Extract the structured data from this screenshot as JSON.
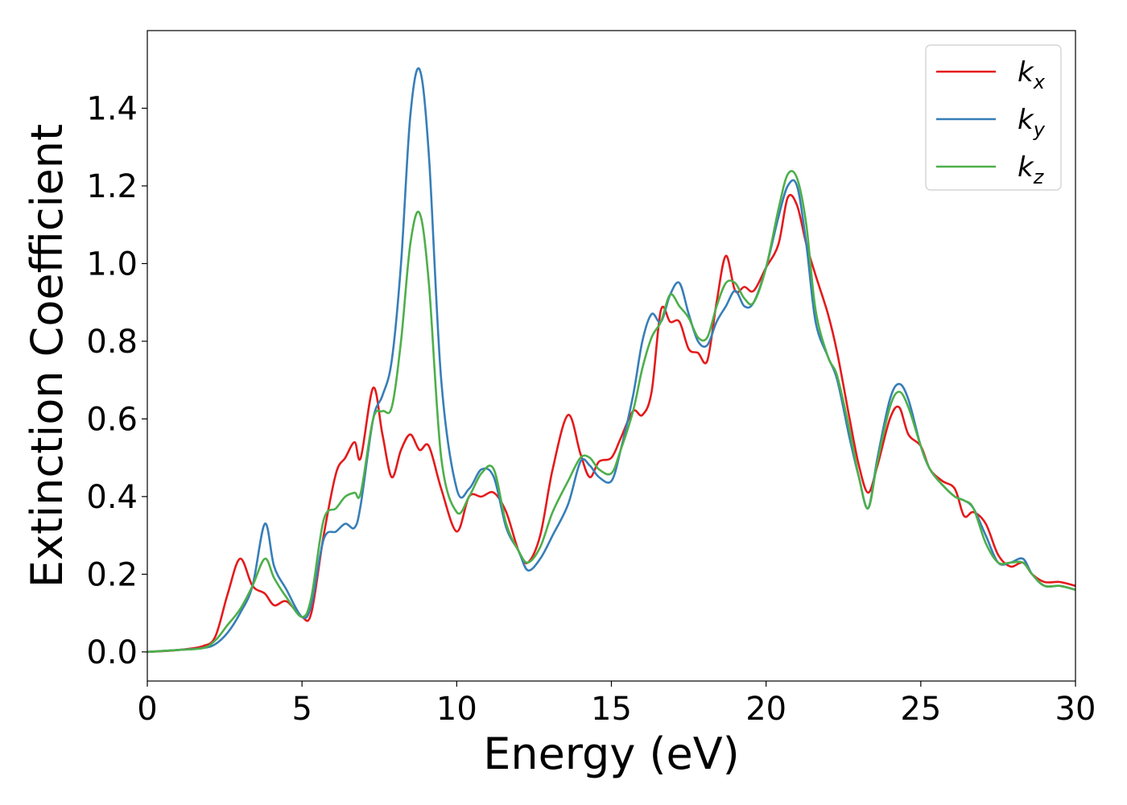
{
  "chart_data": {
    "type": "line",
    "xlabel": "Energy (eV)",
    "ylabel": "Extinction Coefficient",
    "xlim": [
      0,
      30
    ],
    "ylim": [
      -0.075,
      1.6
    ],
    "xticks": [
      0,
      5,
      10,
      15,
      20,
      25,
      30
    ],
    "xtick_labels": [
      "0",
      "5",
      "10",
      "15",
      "20",
      "25",
      "30"
    ],
    "yticks": [
      0.0,
      0.2,
      0.4,
      0.6,
      0.8,
      1.0,
      1.2,
      1.4
    ],
    "ytick_labels": [
      "0.0",
      "0.2",
      "0.4",
      "0.6",
      "0.8",
      "1.0",
      "1.2",
      "1.4"
    ],
    "grid": false,
    "legend_position": "top-right",
    "series": [
      {
        "name": "k",
        "subscript": "x",
        "color": "#e41a1c",
        "x": [
          0,
          1,
          1.8,
          2.2,
          2.6,
          3.0,
          3.4,
          3.8,
          4.1,
          4.5,
          5.0,
          5.3,
          5.7,
          6.1,
          6.4,
          6.7,
          6.9,
          7.3,
          7.6,
          7.9,
          8.2,
          8.5,
          8.8,
          9.1,
          9.5,
          10.0,
          10.4,
          10.8,
          11.2,
          11.6,
          12.0,
          12.3,
          12.7,
          13.1,
          13.6,
          14.0,
          14.3,
          14.6,
          15.0,
          15.3,
          15.7,
          16.0,
          16.3,
          16.6,
          16.9,
          17.2,
          17.5,
          17.8,
          18.1,
          18.4,
          18.7,
          19.0,
          19.3,
          19.6,
          20.0,
          20.4,
          20.7,
          21.0,
          21.3,
          21.6,
          22.0,
          22.3,
          22.7,
          23.0,
          23.3,
          23.6,
          24.0,
          24.3,
          24.6,
          25.0,
          25.3,
          25.7,
          26.1,
          26.4,
          26.7,
          27.1,
          27.5,
          27.9,
          28.3,
          28.6,
          29.0,
          29.5,
          30
        ],
        "y": [
          0.0,
          0.005,
          0.015,
          0.04,
          0.15,
          0.24,
          0.17,
          0.15,
          0.12,
          0.13,
          0.09,
          0.1,
          0.3,
          0.46,
          0.5,
          0.54,
          0.5,
          0.68,
          0.56,
          0.45,
          0.52,
          0.56,
          0.52,
          0.53,
          0.42,
          0.31,
          0.4,
          0.4,
          0.41,
          0.36,
          0.26,
          0.23,
          0.3,
          0.47,
          0.61,
          0.51,
          0.45,
          0.49,
          0.5,
          0.55,
          0.62,
          0.61,
          0.67,
          0.88,
          0.85,
          0.85,
          0.78,
          0.77,
          0.75,
          0.9,
          1.02,
          0.93,
          0.94,
          0.93,
          0.99,
          1.05,
          1.17,
          1.15,
          1.05,
          0.97,
          0.87,
          0.77,
          0.6,
          0.48,
          0.41,
          0.48,
          0.6,
          0.63,
          0.56,
          0.53,
          0.47,
          0.44,
          0.42,
          0.35,
          0.36,
          0.33,
          0.25,
          0.22,
          0.23,
          0.2,
          0.18,
          0.18,
          0.17
        ]
      },
      {
        "name": "k",
        "subscript": "y",
        "color": "#377eb8",
        "x": [
          0,
          1,
          1.8,
          2.2,
          2.6,
          3.0,
          3.4,
          3.8,
          4.1,
          4.5,
          5.0,
          5.3,
          5.7,
          6.1,
          6.4,
          6.7,
          6.9,
          7.3,
          7.6,
          7.9,
          8.2,
          8.5,
          8.8,
          9.1,
          9.5,
          10.0,
          10.4,
          10.8,
          11.2,
          11.6,
          12.0,
          12.3,
          12.7,
          13.1,
          13.6,
          14.0,
          14.3,
          14.6,
          15.0,
          15.3,
          15.7,
          16.0,
          16.3,
          16.6,
          16.9,
          17.2,
          17.5,
          17.8,
          18.1,
          18.4,
          18.7,
          19.0,
          19.3,
          19.6,
          20.0,
          20.4,
          20.7,
          21.0,
          21.3,
          21.6,
          22.0,
          22.3,
          22.7,
          23.0,
          23.3,
          23.6,
          24.0,
          24.3,
          24.6,
          25.0,
          25.3,
          25.7,
          26.1,
          26.4,
          26.7,
          27.1,
          27.5,
          27.9,
          28.3,
          28.6,
          29.0,
          29.5,
          30
        ],
        "y": [
          0.0,
          0.005,
          0.01,
          0.02,
          0.05,
          0.1,
          0.17,
          0.33,
          0.22,
          0.16,
          0.09,
          0.12,
          0.29,
          0.31,
          0.33,
          0.32,
          0.38,
          0.6,
          0.66,
          0.75,
          1.0,
          1.38,
          1.5,
          1.28,
          0.7,
          0.42,
          0.42,
          0.47,
          0.45,
          0.32,
          0.26,
          0.21,
          0.24,
          0.3,
          0.38,
          0.49,
          0.48,
          0.45,
          0.44,
          0.52,
          0.66,
          0.8,
          0.87,
          0.85,
          0.92,
          0.95,
          0.87,
          0.8,
          0.79,
          0.85,
          0.89,
          0.93,
          0.89,
          0.9,
          0.99,
          1.12,
          1.2,
          1.2,
          1.05,
          0.85,
          0.76,
          0.7,
          0.55,
          0.45,
          0.37,
          0.5,
          0.65,
          0.69,
          0.65,
          0.53,
          0.47,
          0.43,
          0.4,
          0.39,
          0.37,
          0.3,
          0.23,
          0.23,
          0.24,
          0.2,
          0.17,
          0.17,
          0.16
        ]
      },
      {
        "name": "k",
        "subscript": "z",
        "color": "#4daf4a",
        "x": [
          0,
          1,
          1.8,
          2.2,
          2.6,
          3.0,
          3.4,
          3.8,
          4.1,
          4.5,
          5.0,
          5.3,
          5.7,
          6.1,
          6.4,
          6.7,
          6.9,
          7.3,
          7.6,
          7.9,
          8.2,
          8.5,
          8.8,
          9.1,
          9.5,
          10.0,
          10.4,
          10.8,
          11.2,
          11.6,
          12.0,
          12.3,
          12.7,
          13.1,
          13.6,
          14.0,
          14.3,
          14.6,
          15.0,
          15.3,
          15.7,
          16.0,
          16.3,
          16.6,
          16.9,
          17.2,
          17.5,
          17.8,
          18.1,
          18.4,
          18.7,
          19.0,
          19.3,
          19.6,
          20.0,
          20.4,
          20.7,
          21.0,
          21.3,
          21.6,
          22.0,
          22.3,
          22.7,
          23.0,
          23.3,
          23.6,
          24.0,
          24.3,
          24.6,
          25.0,
          25.3,
          25.7,
          26.1,
          26.4,
          26.7,
          27.1,
          27.5,
          27.9,
          28.3,
          28.6,
          29.0,
          29.5,
          30
        ],
        "y": [
          0.0,
          0.005,
          0.01,
          0.03,
          0.07,
          0.11,
          0.17,
          0.24,
          0.19,
          0.14,
          0.09,
          0.14,
          0.34,
          0.37,
          0.4,
          0.41,
          0.41,
          0.6,
          0.62,
          0.63,
          0.8,
          1.05,
          1.13,
          0.95,
          0.5,
          0.36,
          0.4,
          0.46,
          0.47,
          0.33,
          0.26,
          0.23,
          0.27,
          0.36,
          0.44,
          0.5,
          0.5,
          0.47,
          0.46,
          0.52,
          0.62,
          0.73,
          0.81,
          0.85,
          0.92,
          0.89,
          0.86,
          0.81,
          0.81,
          0.89,
          0.95,
          0.95,
          0.91,
          0.9,
          0.99,
          1.14,
          1.23,
          1.22,
          1.1,
          0.88,
          0.76,
          0.71,
          0.57,
          0.45,
          0.37,
          0.49,
          0.63,
          0.67,
          0.63,
          0.53,
          0.47,
          0.43,
          0.4,
          0.39,
          0.37,
          0.28,
          0.23,
          0.23,
          0.23,
          0.2,
          0.17,
          0.17,
          0.16
        ]
      }
    ]
  }
}
